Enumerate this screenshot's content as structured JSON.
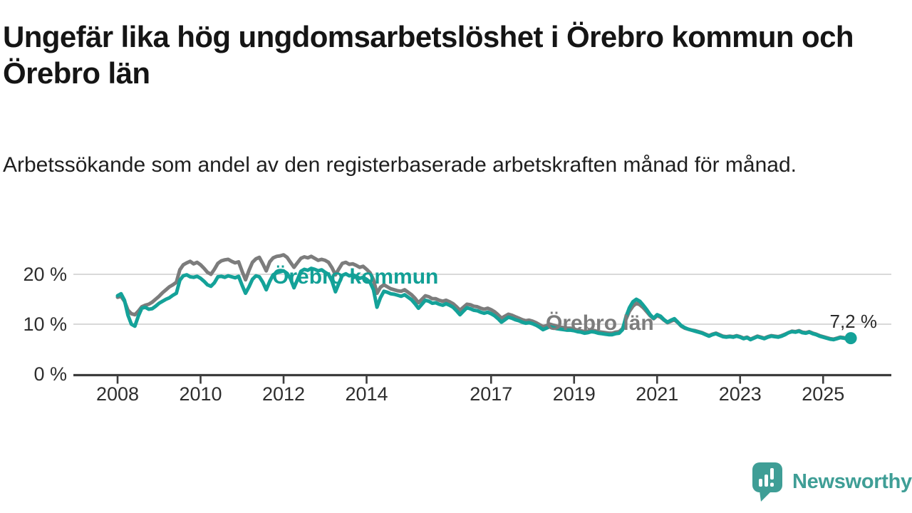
{
  "header": {
    "title": "Ungefär lika hög ungdomsarbetslöshet i Örebro kommun och Örebro län",
    "subtitle": "Arbetssökande som andel av den registerbaserade arbetskraften månad för månad."
  },
  "chart_data": {
    "type": "line",
    "unit": "%",
    "x_frequency": "monthly",
    "x_start": "2008-01",
    "x_end": "2025-09",
    "ylim": [
      0,
      25
    ],
    "grid": "horizontal",
    "legend_position": "inline-labels",
    "y_ticks": [
      {
        "value": 0,
        "label": "0 %"
      },
      {
        "value": 10,
        "label": "10 %"
      },
      {
        "value": 20,
        "label": "20 %"
      }
    ],
    "x_ticks": [
      {
        "year": 2008,
        "label": "2008"
      },
      {
        "year": 2010,
        "label": "2010"
      },
      {
        "year": 2012,
        "label": "2012"
      },
      {
        "year": 2014,
        "label": "2014"
      },
      {
        "year": 2017,
        "label": "2017"
      },
      {
        "year": 2019,
        "label": "2019"
      },
      {
        "year": 2021,
        "label": "2021"
      },
      {
        "year": 2023,
        "label": "2023"
      },
      {
        "year": 2025,
        "label": "2025"
      }
    ],
    "series": [
      {
        "name": "Örebro län",
        "color": "#7c7c7c",
        "values": [
          15.4,
          15.6,
          14.6,
          12.8,
          12.1,
          11.9,
          12.6,
          13.5,
          13.8,
          14.0,
          14.4,
          15.0,
          15.6,
          16.3,
          16.9,
          17.5,
          17.9,
          18.4,
          20.9,
          21.9,
          22.3,
          22.6,
          22.1,
          22.4,
          21.9,
          21.2,
          20.4,
          20.0,
          21.0,
          22.2,
          22.7,
          22.9,
          23.0,
          22.6,
          22.3,
          22.5,
          20.6,
          18.9,
          20.8,
          22.4,
          23.1,
          23.4,
          22.1,
          20.7,
          22.5,
          23.3,
          23.6,
          23.7,
          23.9,
          23.4,
          22.4,
          21.4,
          22.3,
          23.2,
          23.5,
          23.3,
          23.6,
          23.2,
          22.8,
          23.0,
          22.8,
          22.4,
          21.3,
          19.9,
          21.1,
          22.2,
          22.4,
          22.0,
          22.1,
          21.8,
          21.4,
          21.6,
          21.0,
          20.3,
          18.9,
          16.2,
          17.4,
          17.9,
          17.5,
          17.1,
          16.9,
          16.7,
          16.6,
          16.9,
          16.4,
          15.9,
          15.2,
          14.3,
          15.0,
          15.7,
          15.5,
          15.1,
          15.1,
          14.8,
          14.6,
          14.8,
          14.5,
          14.1,
          13.5,
          12.8,
          13.4,
          14.0,
          13.9,
          13.6,
          13.5,
          13.2,
          13.0,
          13.2,
          12.9,
          12.5,
          11.9,
          11.2,
          11.6,
          12.0,
          11.8,
          11.5,
          11.2,
          10.9,
          10.7,
          10.8,
          10.6,
          10.3,
          9.9,
          9.5,
          9.7,
          10.0,
          9.8,
          9.6,
          9.4,
          9.3,
          9.2,
          9.2,
          9.0,
          8.8,
          8.7,
          8.5,
          8.6,
          8.8,
          8.7,
          8.5,
          8.4,
          8.3,
          8.2,
          8.2,
          8.4,
          8.5,
          9.1,
          11.0,
          12.6,
          13.6,
          14.2,
          13.9,
          13.3,
          12.5,
          11.7,
          11.1,
          11.7,
          11.4,
          10.8,
          10.3,
          10.6,
          10.9,
          10.3,
          9.6,
          9.2,
          9.0,
          8.8,
          8.7,
          8.5,
          8.3,
          8.0,
          7.7,
          8.0,
          8.2,
          7.9,
          7.6,
          7.5,
          7.6,
          7.5,
          7.7,
          7.5,
          7.2,
          7.4,
          7.0,
          7.3,
          7.6,
          7.4,
          7.2,
          7.5,
          7.7,
          7.6,
          7.5,
          7.7,
          8.0,
          8.3,
          8.6,
          8.5,
          8.7,
          8.4,
          8.3,
          8.5,
          8.2,
          8.0,
          7.7,
          7.5,
          7.3,
          7.1,
          7.0,
          7.2,
          7.4,
          7.3,
          7.1,
          7.3
        ]
      },
      {
        "name": "Örebro kommun",
        "color": "#14a299",
        "values": [
          15.7,
          16.1,
          14.8,
          11.8,
          10.0,
          9.6,
          11.6,
          13.2,
          13.4,
          13.0,
          13.1,
          13.6,
          14.2,
          14.6,
          15.0,
          15.3,
          15.8,
          16.2,
          18.8,
          19.7,
          19.9,
          19.5,
          19.4,
          19.6,
          19.2,
          18.6,
          17.9,
          17.6,
          18.3,
          19.5,
          19.6,
          19.4,
          19.7,
          19.5,
          19.3,
          19.6,
          17.8,
          16.2,
          17.5,
          19.0,
          19.7,
          19.5,
          18.4,
          16.9,
          18.6,
          19.9,
          20.3,
          20.5,
          20.7,
          20.2,
          19.1,
          17.3,
          18.9,
          20.6,
          21.0,
          20.8,
          21.2,
          21.0,
          20.7,
          20.9,
          20.4,
          20.0,
          18.6,
          16.5,
          18.2,
          19.8,
          20.1,
          19.7,
          19.9,
          19.6,
          19.2,
          19.4,
          19.0,
          18.4,
          16.9,
          13.4,
          15.3,
          16.6,
          16.4,
          16.1,
          16.0,
          15.8,
          15.6,
          15.9,
          15.4,
          14.9,
          14.1,
          13.2,
          14.0,
          14.8,
          14.6,
          14.2,
          14.3,
          14.0,
          13.8,
          14.1,
          13.8,
          13.4,
          12.7,
          11.9,
          12.6,
          13.3,
          13.1,
          12.8,
          12.7,
          12.4,
          12.2,
          12.4,
          12.1,
          11.7,
          11.1,
          10.4,
          10.9,
          11.4,
          11.2,
          10.9,
          10.7,
          10.4,
          10.2,
          10.3,
          10.1,
          9.8,
          9.4,
          8.9,
          9.2,
          9.5,
          9.3,
          9.1,
          9.0,
          8.9,
          8.8,
          8.8,
          8.7,
          8.5,
          8.4,
          8.2,
          8.3,
          8.5,
          8.4,
          8.2,
          8.1,
          8.0,
          7.9,
          7.9,
          8.1,
          8.2,
          8.9,
          11.5,
          13.3,
          14.5,
          15.0,
          14.6,
          13.8,
          12.9,
          11.9,
          11.2,
          11.9,
          11.6,
          10.9,
          10.4,
          10.8,
          11.1,
          10.4,
          9.7,
          9.3,
          9.0,
          8.8,
          8.6,
          8.4,
          8.2,
          7.9,
          7.6,
          7.9,
          8.1,
          7.8,
          7.5,
          7.4,
          7.5,
          7.4,
          7.6,
          7.4,
          7.1,
          7.3,
          6.9,
          7.2,
          7.5,
          7.3,
          7.1,
          7.4,
          7.6,
          7.5,
          7.4,
          7.6,
          7.9,
          8.3,
          8.5,
          8.4,
          8.6,
          8.3,
          8.2,
          8.4,
          8.1,
          7.9,
          7.6,
          7.4,
          7.2,
          7.0,
          6.9,
          7.1,
          7.3,
          7.2,
          7.0,
          7.2
        ]
      }
    ],
    "series_labels": {
      "kommun": "Örebro kommun",
      "lan": "Örebro län"
    },
    "annotation": {
      "label": "7,2 %",
      "value": 7.2,
      "series": "Örebro kommun",
      "x": "2025-09"
    },
    "colors": {
      "kommun": "#14a299",
      "lan": "#7c7c7c",
      "grid": "#d9d9d9",
      "axis": "#3c3c3c"
    }
  },
  "footer": {
    "brand": "Newsworthy",
    "brand_color": "#3f9e96"
  }
}
